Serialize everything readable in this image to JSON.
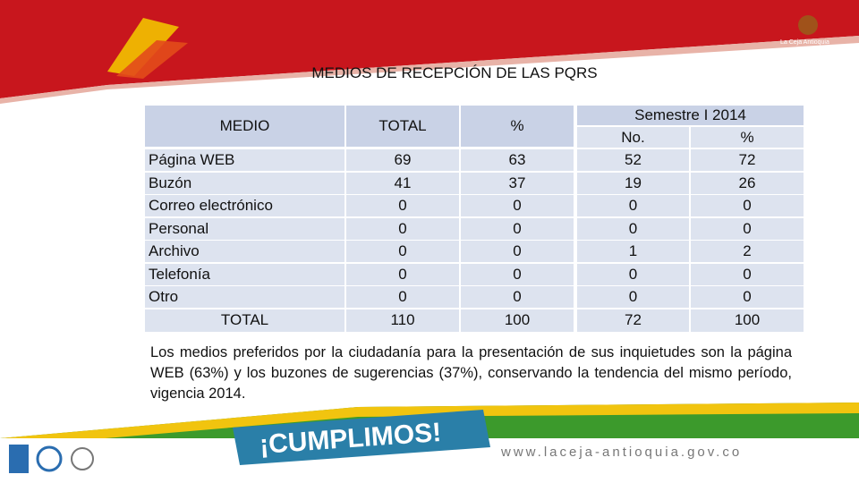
{
  "header": {
    "title": "MEDIOS DE RECEPCIÓN DE LAS PQRS",
    "brand": "La Ceja Antioquia"
  },
  "table": {
    "columns": [
      "MEDIO",
      "TOTAL",
      "%"
    ],
    "group": {
      "title": "Semestre I 2014",
      "columns": [
        "No.",
        "%"
      ]
    },
    "rows": [
      [
        "Página WEB",
        69,
        63,
        52,
        72
      ],
      [
        "Buzón",
        41,
        37,
        19,
        26
      ],
      [
        "Correo electrónico",
        0,
        0,
        0,
        0
      ],
      [
        "Personal",
        0,
        0,
        0,
        0
      ],
      [
        "Archivo",
        0,
        0,
        1,
        2
      ],
      [
        "Telefonía",
        0,
        0,
        0,
        0
      ],
      [
        "Otro",
        0,
        0,
        0,
        0
      ]
    ],
    "total": [
      "TOTAL",
      110,
      100,
      72,
      100
    ]
  },
  "paragraph": "Los medios preferidos por la ciudadanía para la presentación de sus inquietudes son la página WEB (63%) y los buzones de sugerencias (37%), conservando la tendencia del mismo período, vigencia 2014.",
  "footer": {
    "slogan": "¡CUMPLIMOS!",
    "url": "www.laceja-antioquia.gov.co"
  }
}
